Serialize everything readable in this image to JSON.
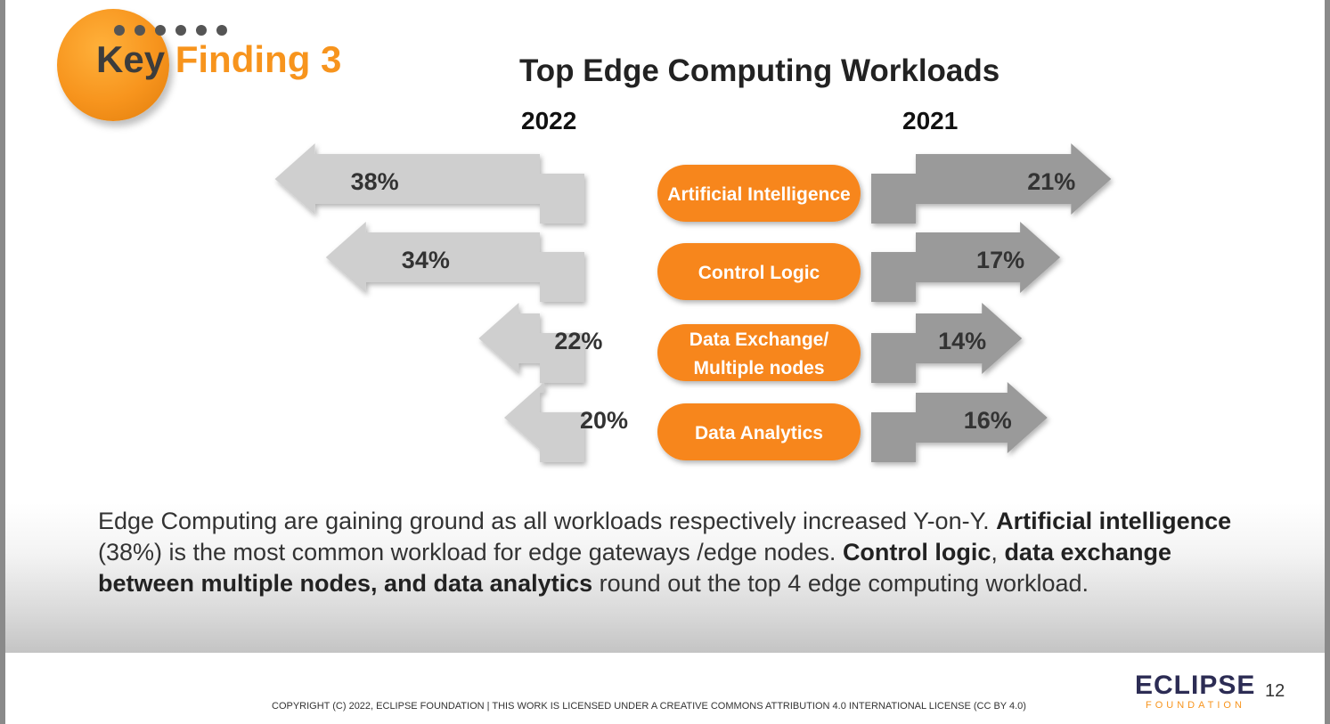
{
  "badge": {
    "key": "Key",
    "finding": "Finding 3"
  },
  "chart_data": {
    "type": "bar",
    "title": "Top Edge Computing Workloads",
    "categories": [
      "Artificial Intelligence",
      "Control Logic",
      "Data Exchange/ Multiple nodes",
      "Data Analytics"
    ],
    "category_lines": [
      [
        "Artificial Intelligence"
      ],
      [
        "Control Logic"
      ],
      [
        "Data Exchange/",
        "Multiple nodes"
      ],
      [
        "Data Analytics"
      ]
    ],
    "series": [
      {
        "name": "2022",
        "values": [
          38,
          34,
          22,
          20
        ],
        "labels": [
          "38%",
          "34%",
          "22%",
          "20%"
        ]
      },
      {
        "name": "2021",
        "values": [
          21,
          17,
          14,
          16
        ],
        "labels": [
          "21%",
          "17%",
          "14%",
          "16%"
        ]
      }
    ],
    "colors": {
      "left": "#cfcfcf",
      "right": "#9a9a9a",
      "pill": "#f7861f"
    }
  },
  "description": {
    "p1": "Edge Computing are gaining ground as all workloads respectively increased Y-on-Y. ",
    "b1": "Artificial intelligence",
    "p2": " (38%) is the most common workload for edge gateways /edge nodes. ",
    "b2": "Control logic",
    "p3": ", ",
    "b3": "data exchange between multiple nodes, and data analytics",
    "p4": " round out the top 4 edge computing workload."
  },
  "footer": {
    "copyright": "COPYRIGHT (C) 2022, ECLIPSE FOUNDATION | THIS WORK IS LICENSED UNDER A CREATIVE COMMONS ATTRIBUTION 4.0 INTERNATIONAL LICENSE (CC BY 4.0)",
    "logo_main": "ECLIPSE",
    "logo_sub": "FOUNDATION",
    "page_number": "12"
  }
}
